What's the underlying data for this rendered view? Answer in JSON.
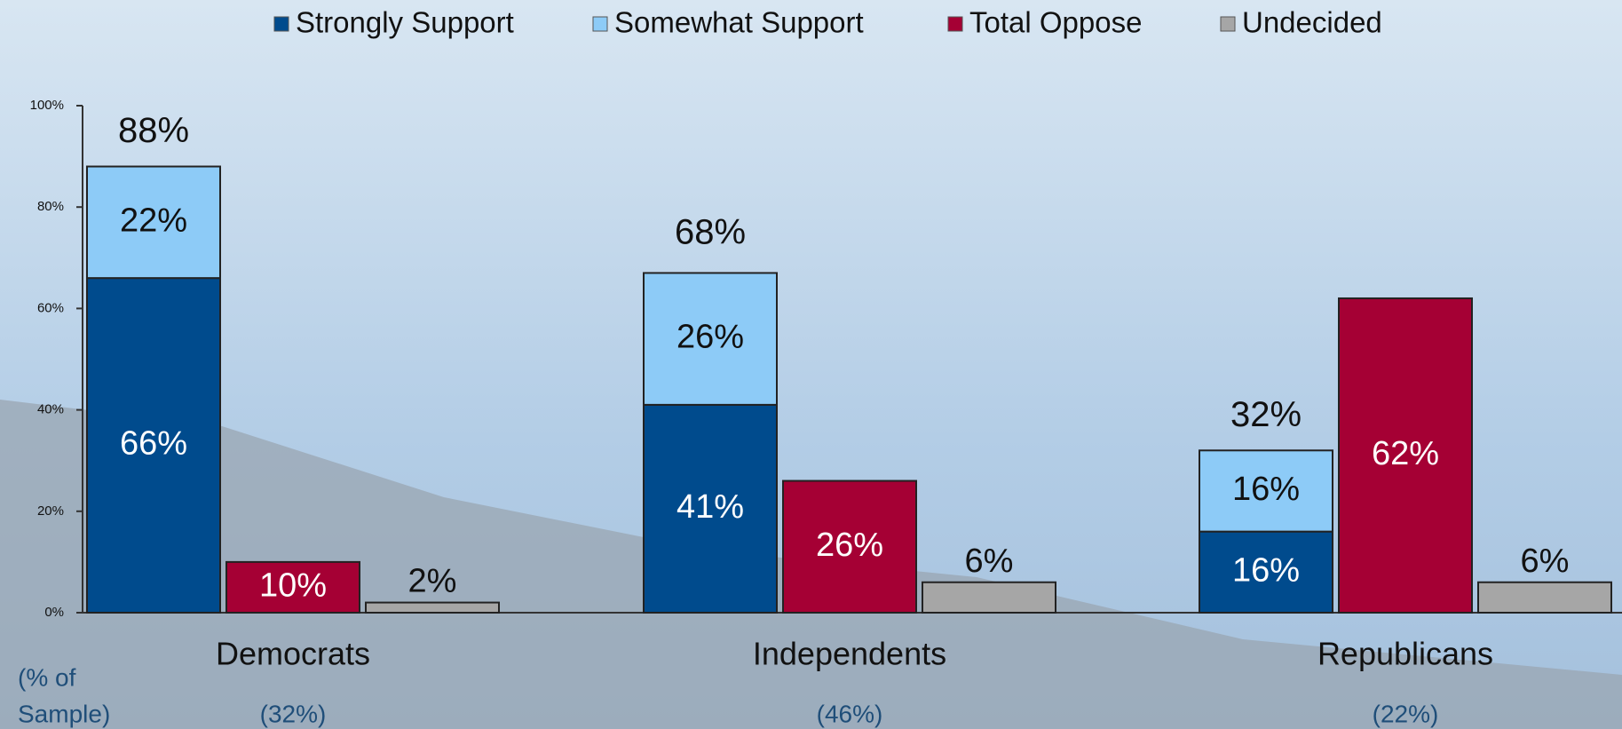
{
  "chart_data": {
    "type": "bar",
    "categories": [
      "Democrats",
      "Independents",
      "Republicans"
    ],
    "series": [
      {
        "name": "Strongly Support",
        "color": "#004b8d",
        "values": [
          66,
          41,
          16
        ],
        "value_labels": [
          "66%",
          "41%",
          "16%"
        ]
      },
      {
        "name": "Somewhat Support",
        "color": "#8dcbf7",
        "values": [
          22,
          26,
          16
        ],
        "value_labels": [
          "22%",
          "26%",
          "16%"
        ]
      },
      {
        "name": "Total Oppose",
        "color": "#a50034",
        "values": [
          10,
          26,
          62
        ],
        "value_labels": [
          "10%",
          "26%",
          "62%"
        ]
      },
      {
        "name": "Undecided",
        "color": "#a6a6a6",
        "values": [
          2,
          6,
          6
        ],
        "value_labels": [
          "2%",
          "6%",
          "6%"
        ]
      }
    ],
    "stacked_series": [
      0,
      1
    ],
    "totals": {
      "values": [
        88,
        68,
        32
      ],
      "value_labels": [
        "88%",
        "68%",
        "32%"
      ]
    },
    "ylim": [
      0,
      100
    ],
    "yticks": [
      {
        "value": 0,
        "label": "0%"
      },
      {
        "value": 20,
        "label": "20%"
      },
      {
        "value": 40,
        "label": "40%"
      },
      {
        "value": 60,
        "label": "60%"
      },
      {
        "value": 80,
        "label": "80%"
      },
      {
        "value": 100,
        "label": "100%"
      }
    ],
    "sample_label_lines": [
      "(% of",
      "Sample)"
    ],
    "sample_sizes": [
      "(32%)",
      "(46%)",
      "(22%)"
    ],
    "legend": "top"
  }
}
